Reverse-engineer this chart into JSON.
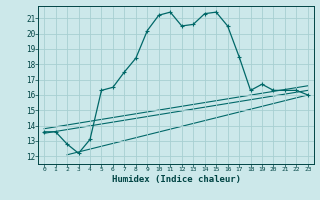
{
  "xlabel": "Humidex (Indice chaleur)",
  "bg_color": "#cce8ea",
  "grid_color": "#a8cfd2",
  "line_color": "#006868",
  "xlim": [
    -0.5,
    23.5
  ],
  "ylim": [
    11.5,
    21.8
  ],
  "xticks": [
    0,
    1,
    2,
    3,
    4,
    5,
    6,
    7,
    8,
    9,
    10,
    11,
    12,
    13,
    14,
    15,
    16,
    17,
    18,
    19,
    20,
    21,
    22,
    23
  ],
  "yticks": [
    12,
    13,
    14,
    15,
    16,
    17,
    18,
    19,
    20,
    21
  ],
  "curve1_x": [
    0,
    1,
    2,
    3,
    4,
    5,
    6,
    7,
    8,
    9,
    10,
    11,
    12,
    13,
    14,
    15,
    16,
    17,
    18,
    19,
    20,
    21,
    22,
    23
  ],
  "curve1_y": [
    13.6,
    13.6,
    12.8,
    12.2,
    13.1,
    16.3,
    16.5,
    17.5,
    18.4,
    20.2,
    21.2,
    21.4,
    20.5,
    20.6,
    21.3,
    21.4,
    20.5,
    18.5,
    16.3,
    16.7,
    16.3,
    16.3,
    16.3,
    16.0
  ],
  "line2_x": [
    0,
    23
  ],
  "line2_y": [
    13.5,
    16.3
  ],
  "line3_x": [
    0,
    23
  ],
  "line3_y": [
    13.8,
    16.6
  ],
  "line4_x": [
    2,
    23
  ],
  "line4_y": [
    12.1,
    16.0
  ]
}
